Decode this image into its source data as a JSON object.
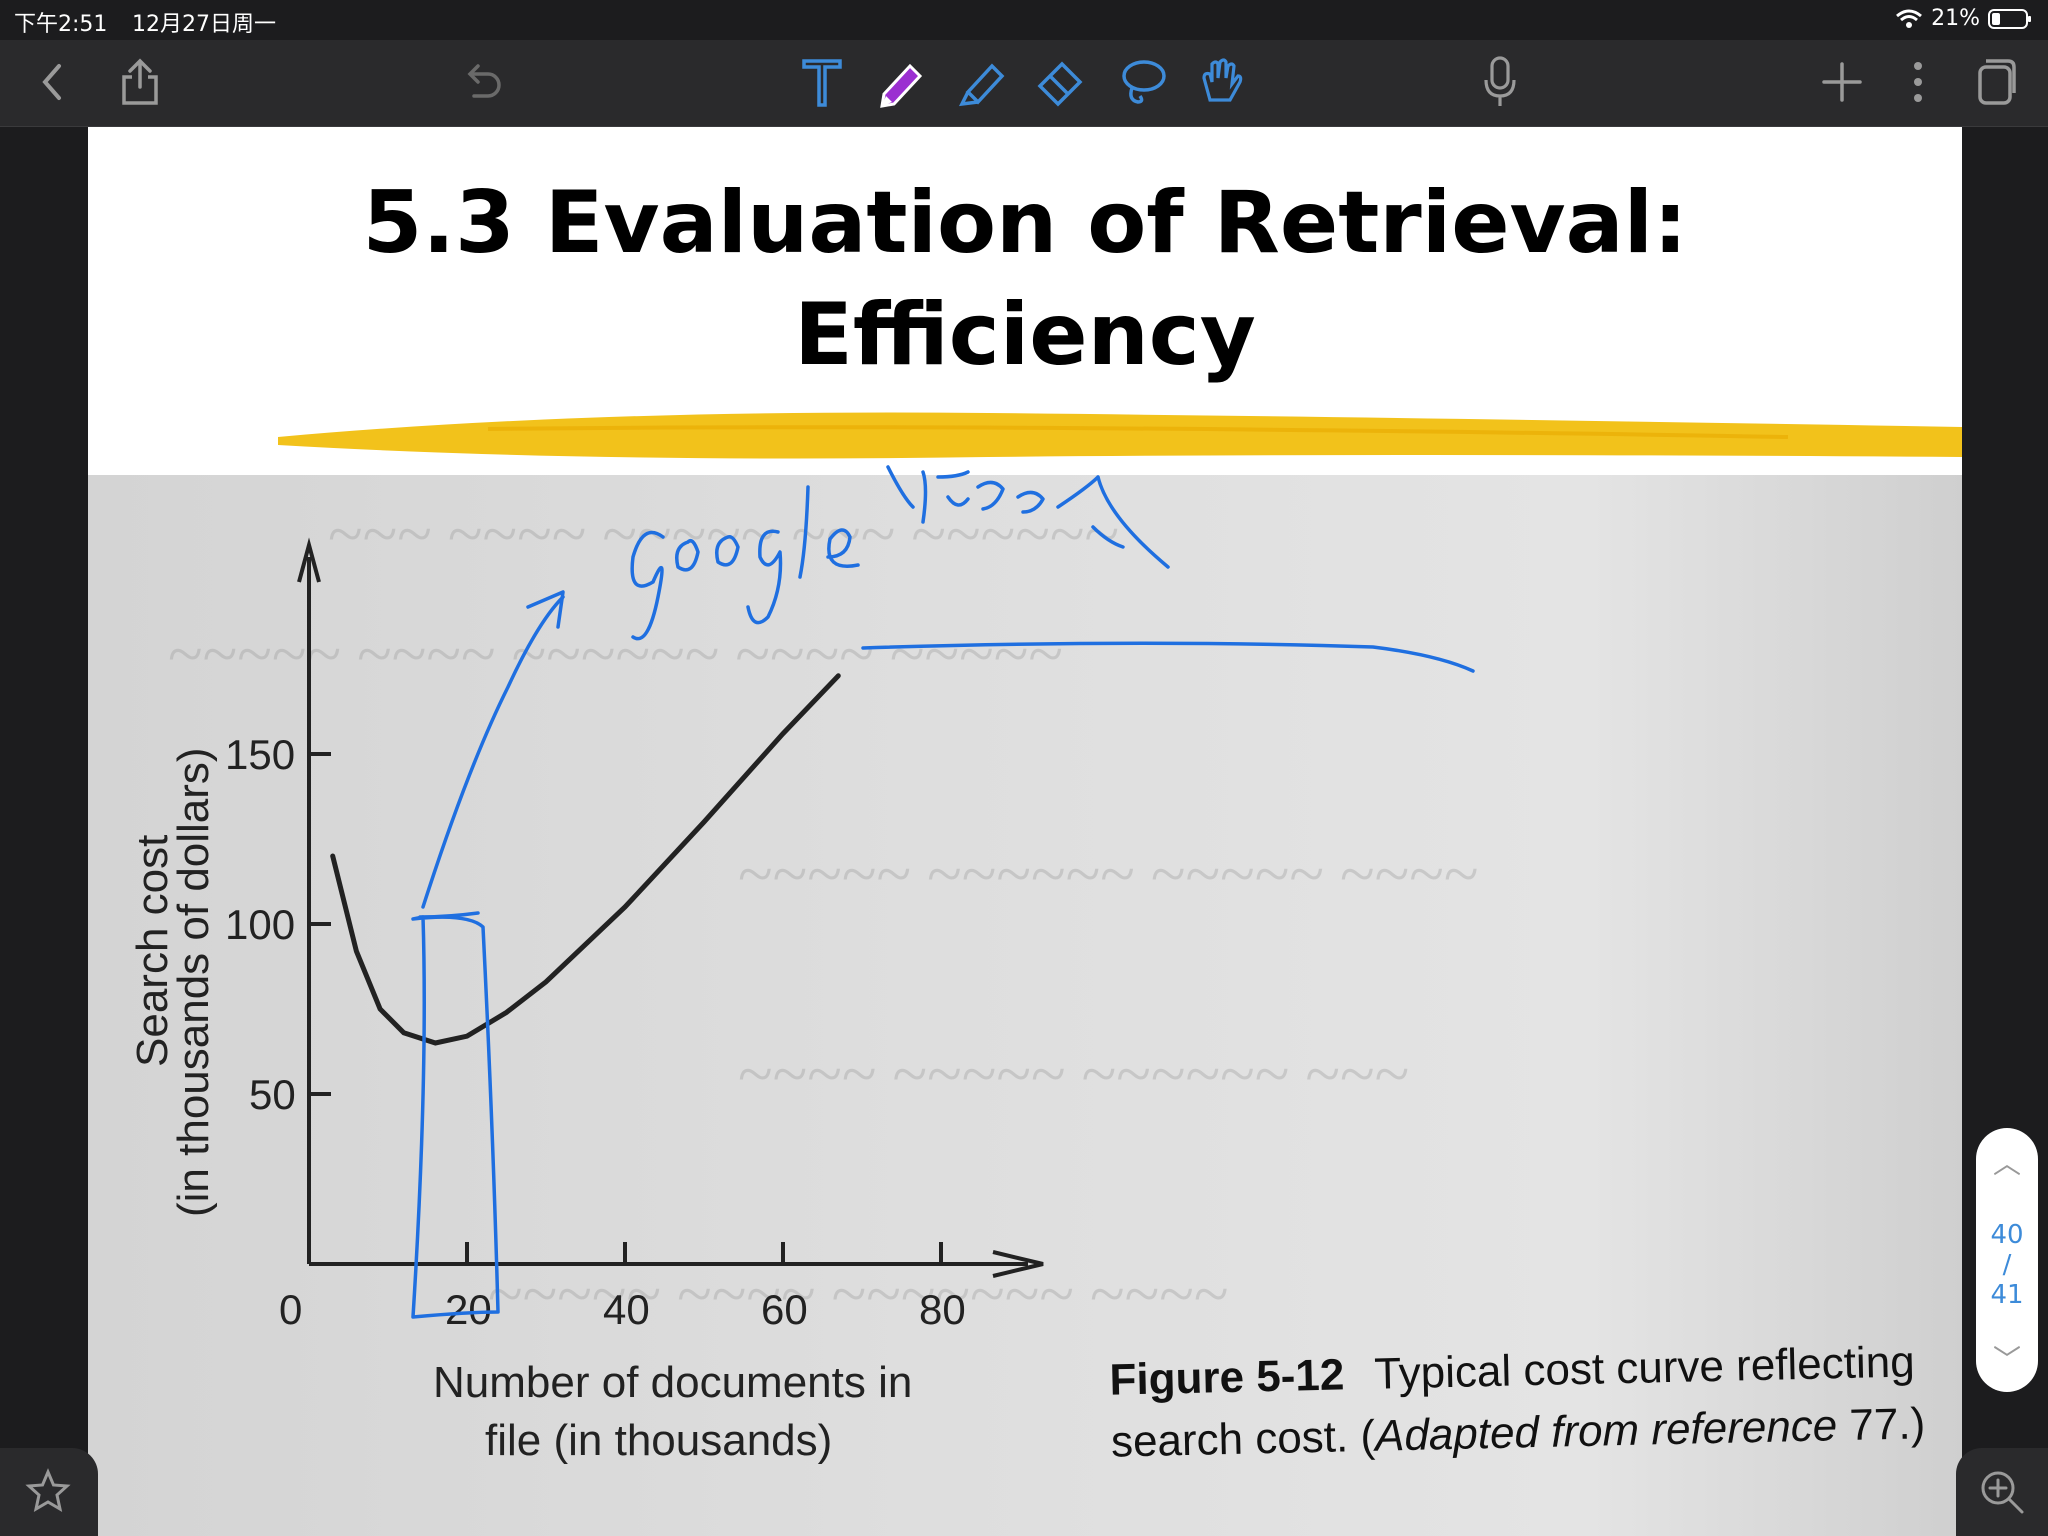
{
  "status": {
    "time": "下午2:51",
    "date": "12月27日周一",
    "battery": "21%"
  },
  "toolbar": {
    "icons": [
      "back-icon",
      "share-icon",
      "undo-icon",
      "text-tool-icon",
      "pen-tool-icon",
      "highlighter-icon",
      "eraser-icon",
      "lasso-icon",
      "hand-tool-icon",
      "microphone-icon",
      "add-page-icon",
      "more-icon",
      "page-view-icon"
    ],
    "active_tool_color": "#9b2fd1",
    "tool_color": "#3d8bd9"
  },
  "slide": {
    "title_line1": "5.3 Evaluation of Retrieval:",
    "title_line2": "Efficiency",
    "highlight_color": "#f2c21b"
  },
  "figure": {
    "y_label_line1": "Search cost",
    "y_label_line2": "(in thousands of dollars)",
    "x_label_line1": "Number of documents in",
    "x_label_line2": "file (in thousands)",
    "x_ticks": [
      "0",
      "20",
      "40",
      "60",
      "80"
    ],
    "y_ticks": [
      "50",
      "100",
      "150"
    ],
    "caption_bold": "Figure 5-12",
    "caption_line1": "Typical cost curve reflecting",
    "caption_line2_a": "search cost. (",
    "caption_line2_italic": "Adapted from reference",
    "caption_line2_b": " 77.)"
  },
  "chart_data": {
    "type": "line",
    "xlabel": "Number of documents in file (in thousands)",
    "ylabel": "Search cost (in thousands of dollars)",
    "xlim": [
      0,
      90
    ],
    "ylim": [
      0,
      175
    ],
    "series": [
      {
        "x": [
          3,
          6,
          9,
          12,
          16,
          20,
          25,
          30,
          40,
          50,
          60,
          67
        ],
        "y": [
          120,
          92,
          75,
          68,
          65,
          67,
          74,
          83,
          105,
          130,
          156,
          173
        ]
      }
    ]
  },
  "annotation": {
    "handwriting": "google 搜索",
    "ink_color": "#1f6fe0"
  },
  "pager": {
    "current": "40",
    "separator": "/",
    "total": "41"
  }
}
